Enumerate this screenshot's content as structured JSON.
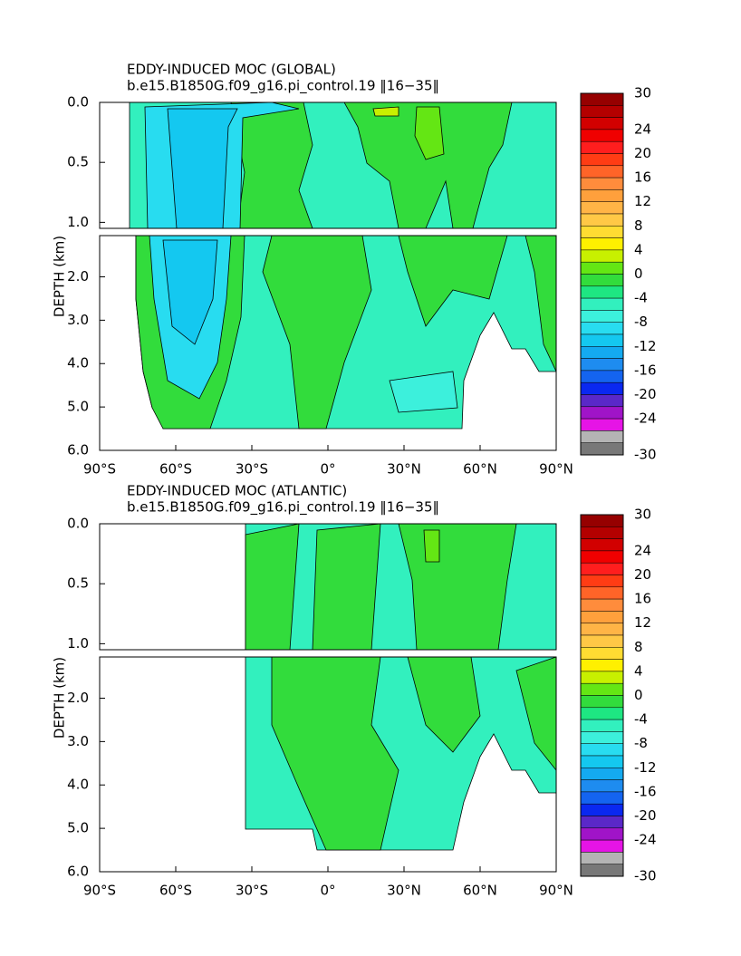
{
  "chart_data": [
    {
      "type": "contour",
      "title": "EDDY-INDUCED MOC (GLOBAL)",
      "subtitle": "b.e15.B1850G.f09_g16.pi_control.19 ‖16−35‖",
      "ylabel": "DEPTH (km)",
      "xlim": [
        -90,
        90
      ],
      "xticks": [
        {
          "value": -90,
          "label": "90°S"
        },
        {
          "value": -60,
          "label": "60°S"
        },
        {
          "value": -30,
          "label": "30°S"
        },
        {
          "value": 0,
          "label": "0°"
        },
        {
          "value": 30,
          "label": "30°N"
        },
        {
          "value": 60,
          "label": "60°N"
        },
        {
          "value": 90,
          "label": "90°N"
        }
      ],
      "upper_ylim": [
        0,
        1.05
      ],
      "upper_yticks": [
        {
          "value": 0,
          "label": "0.0"
        },
        0.5,
        {
          "value": 1,
          "label": "1.0"
        }
      ],
      "lower_ylim": [
        1.05,
        6
      ],
      "lower_yticks": [
        {
          "value": 2,
          "label": "2.0"
        },
        {
          "value": 3,
          "label": "3.0"
        },
        {
          "value": 4,
          "label": "4.0"
        },
        {
          "value": 5,
          "label": "5.0"
        },
        {
          "value": 6,
          "label": "6.0"
        }
      ],
      "colorbar_lim": [
        -30,
        30
      ],
      "colorbar_ticks": [
        30,
        24,
        20,
        16,
        12,
        8,
        4,
        0,
        -4,
        -8,
        -12,
        -16,
        -20,
        -24,
        -30
      ],
      "colorbar_colors": [
        "#960000",
        "#b40000",
        "#d20000",
        "#f00000",
        "#ff1e1e",
        "#ff3c14",
        "#ff6428",
        "#ff8c3c",
        "#ffa03c",
        "#ffb446",
        "#ffc846",
        "#ffdc32",
        "#fff000",
        "#c8f000",
        "#64e614",
        "#32dc3c",
        "#1ee682",
        "#32f0be",
        "#3cf0dc",
        "#28dcf0",
        "#14c8f0",
        "#14aaf0",
        "#1e8cf0",
        "#1464f0",
        "#0a28f0",
        "#5a28c8",
        "#a014c8",
        "#e614e6",
        "#b4b4b4",
        "#787878"
      ]
    },
    {
      "type": "contour",
      "title": "EDDY-INDUCED MOC (ATLANTIC)",
      "subtitle": "b.e15.B1850G.f09_g16.pi_control.19 ‖16−35‖",
      "ylabel": "DEPTH (km)",
      "xlim": [
        -90,
        90
      ],
      "xticks": [
        {
          "value": -90,
          "label": "90°S"
        },
        {
          "value": -60,
          "label": "60°S"
        },
        {
          "value": -30,
          "label": "30°S"
        },
        {
          "value": 0,
          "label": "0°"
        },
        {
          "value": 30,
          "label": "30°N"
        },
        {
          "value": 60,
          "label": "60°N"
        },
        {
          "value": 90,
          "label": "90°N"
        }
      ],
      "upper_ylim": [
        0,
        1.05
      ],
      "upper_yticks": [
        {
          "value": 0,
          "label": "0.0"
        },
        0.5,
        {
          "value": 1,
          "label": "1.0"
        }
      ],
      "lower_ylim": [
        1.05,
        6
      ],
      "lower_yticks": [
        {
          "value": 2,
          "label": "2.0"
        },
        {
          "value": 3,
          "label": "3.0"
        },
        {
          "value": 4,
          "label": "4.0"
        },
        {
          "value": 5,
          "label": "5.0"
        },
        {
          "value": 6,
          "label": "6.0"
        }
      ],
      "colorbar_lim": [
        -30,
        30
      ],
      "colorbar_ticks": [
        30,
        24,
        20,
        16,
        12,
        8,
        4,
        0,
        -4,
        -8,
        -12,
        -16,
        -20,
        -24,
        -30
      ],
      "colorbar_colors": [
        "#960000",
        "#b40000",
        "#d20000",
        "#f00000",
        "#ff1e1e",
        "#ff3c14",
        "#ff6428",
        "#ff8c3c",
        "#ffa03c",
        "#ffb446",
        "#ffc846",
        "#ffdc32",
        "#fff000",
        "#c8f000",
        "#64e614",
        "#32dc3c",
        "#1ee682",
        "#32f0be",
        "#3cf0dc",
        "#28dcf0",
        "#14c8f0",
        "#14aaf0",
        "#1e8cf0",
        "#1464f0",
        "#0a28f0",
        "#5a28c8",
        "#a014c8",
        "#e614e6",
        "#b4b4b4",
        "#787878"
      ]
    }
  ]
}
